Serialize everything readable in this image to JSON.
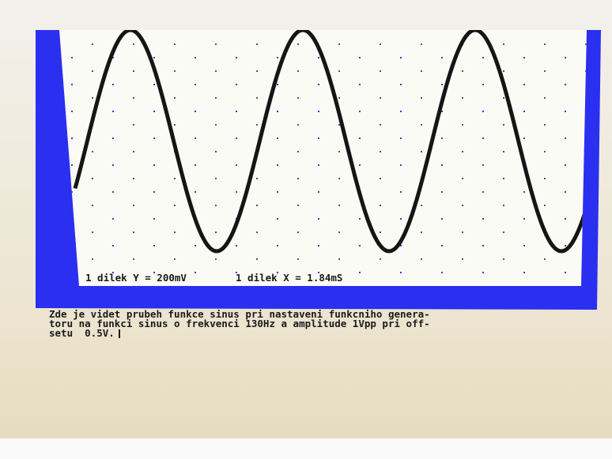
{
  "scope": {
    "y_scale_label": "1 dilek Y = 200mV",
    "x_scale_label": "1 dilek X = 1.84mS"
  },
  "description": {
    "lines": [
      "Zde je videt prubeh funkce sinus pri nastaveni funkcniho genera-",
      "toru na funkci sinus o frekvenci 130Hz a amplitude 1Vpp pri off-",
      "setu  0.5V."
    ]
  }
}
